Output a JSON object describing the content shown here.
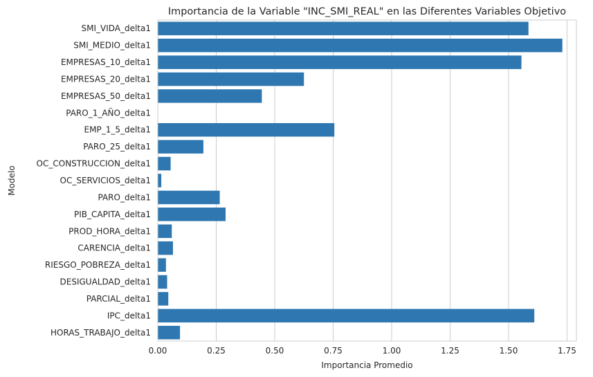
{
  "chart_data": {
    "type": "bar",
    "orientation": "horizontal",
    "title": "Importancia de la Variable \"INC_SMI_REAL\" en las Diferentes Variables Objetivo",
    "xlabel": "Importancia Promedio",
    "ylabel": "Modelo",
    "xlim": [
      0,
      1.79
    ],
    "x_ticks": [
      0.0,
      0.25,
      0.5,
      0.75,
      1.0,
      1.25,
      1.5,
      1.75
    ],
    "x_tick_labels": [
      "0.00",
      "0.25",
      "0.50",
      "0.75",
      "1.00",
      "1.25",
      "1.50",
      "1.75"
    ],
    "grid": "vertical",
    "bar_color": "#2e77b0",
    "categories": [
      "SMI_VIDA_delta1",
      "SMI_MEDIO_delta1",
      "EMPRESAS_10_delta1",
      "EMPRESAS_20_delta1",
      "EMPRESAS_50_delta1",
      "PARO_1_AÑO_delta1",
      "EMP_1_5_delta1",
      "PARO_25_delta1",
      "OC_CONSTRUCCION_delta1",
      "OC_SERVICIOS_delta1",
      "PARO_delta1",
      "PIB_CAPITA_delta1",
      "PROD_HORA_delta1",
      "CARENCIA_delta1",
      "RIESGO_POBREZA_delta1",
      "DESIGUALDAD_delta1",
      "PARCIAL_delta1",
      "IPC_delta1",
      "HORAS_TRABAJO_delta1"
    ],
    "values": [
      1.585,
      1.73,
      1.555,
      0.625,
      0.445,
      0.0,
      0.755,
      0.195,
      0.055,
      0.015,
      0.265,
      0.29,
      0.06,
      0.065,
      0.035,
      0.04,
      0.045,
      1.61,
      0.095
    ]
  }
}
